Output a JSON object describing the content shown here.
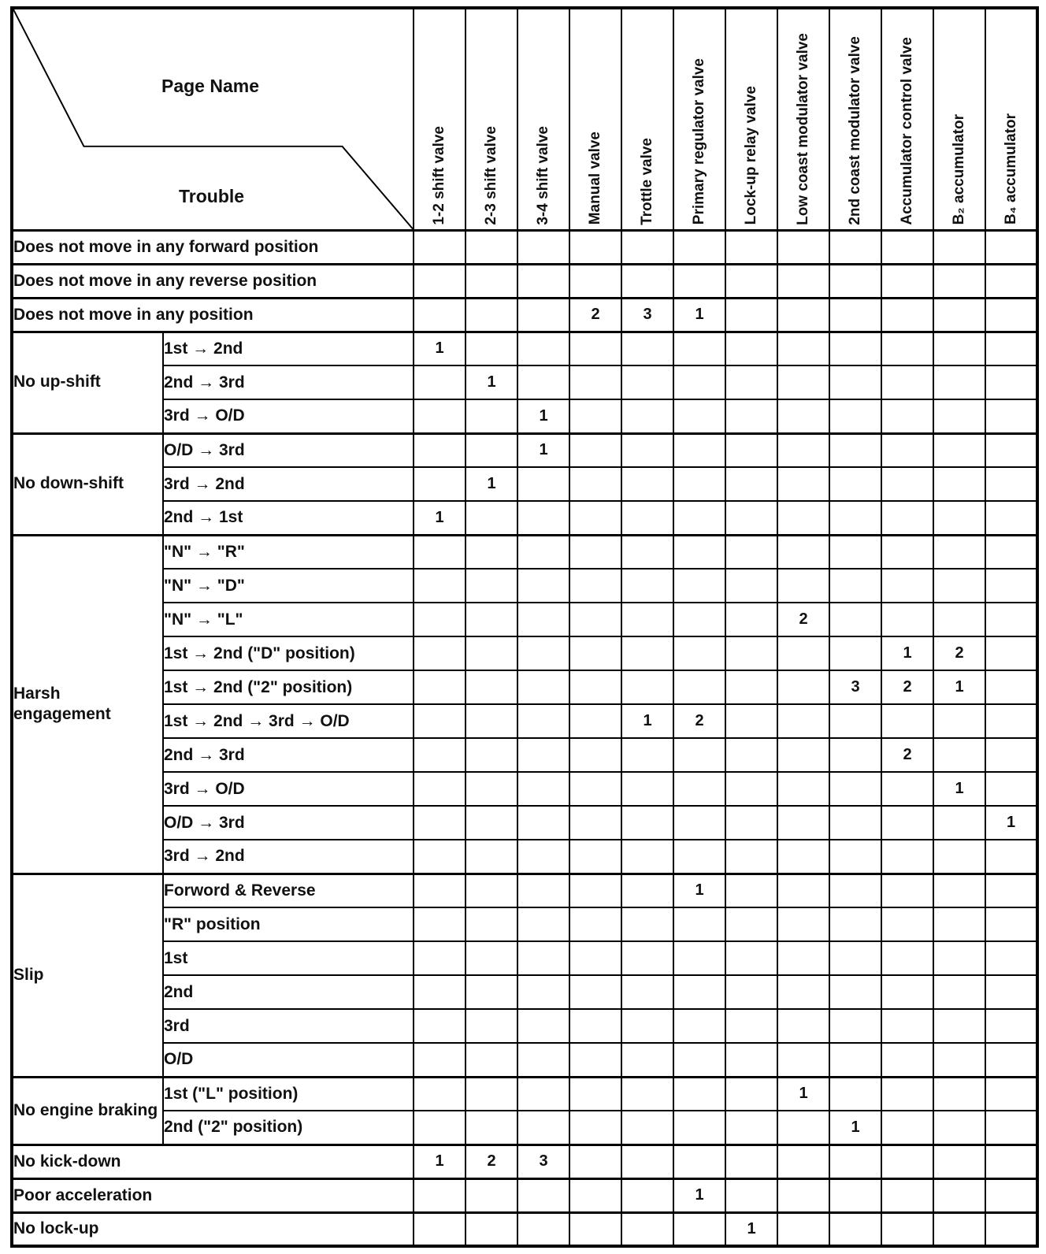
{
  "corner": {
    "page_name": "Page Name",
    "trouble": "Trouble"
  },
  "columns": [
    "1-2 shift valve",
    "2-3 shift valve",
    "3-4 shift valve",
    "Manual valve",
    "Trottle valve",
    "Primary regulator valve",
    "Lock-up relay valve",
    "Low coast modulator valve",
    "2nd coast modulator valve",
    "Accumulator control valve",
    "B₂ accumulator",
    "B₄ accumulator"
  ],
  "rows": [
    {
      "type": "full",
      "label": "Does not move in any forward position",
      "values": [
        "",
        "",
        "",
        "",
        "",
        "",
        "",
        "",
        "",
        "",
        "",
        ""
      ]
    },
    {
      "type": "full",
      "label": "Does not move in any reverse position",
      "values": [
        "",
        "",
        "",
        "",
        "",
        "",
        "",
        "",
        "",
        "",
        "",
        ""
      ]
    },
    {
      "type": "full",
      "label": "Does not move in any position",
      "values": [
        "",
        "",
        "",
        "2",
        "3",
        "1",
        "",
        "",
        "",
        "",
        "",
        ""
      ]
    },
    {
      "type": "group-start",
      "group": "No up-shift",
      "group_span": 3,
      "label": "1st → 2nd",
      "values": [
        "1",
        "",
        "",
        "",
        "",
        "",
        "",
        "",
        "",
        "",
        "",
        ""
      ]
    },
    {
      "type": "sub",
      "label": "2nd → 3rd",
      "values": [
        "",
        "1",
        "",
        "",
        "",
        "",
        "",
        "",
        "",
        "",
        "",
        ""
      ]
    },
    {
      "type": "sub",
      "label": "3rd → O/D",
      "values": [
        "",
        "",
        "1",
        "",
        "",
        "",
        "",
        "",
        "",
        "",
        "",
        ""
      ]
    },
    {
      "type": "group-start",
      "group": "No down-shift",
      "group_span": 3,
      "label": "O/D → 3rd",
      "values": [
        "",
        "",
        "1",
        "",
        "",
        "",
        "",
        "",
        "",
        "",
        "",
        ""
      ]
    },
    {
      "type": "sub",
      "label": "3rd → 2nd",
      "values": [
        "",
        "1",
        "",
        "",
        "",
        "",
        "",
        "",
        "",
        "",
        "",
        ""
      ]
    },
    {
      "type": "sub",
      "label": "2nd → 1st",
      "values": [
        "1",
        "",
        "",
        "",
        "",
        "",
        "",
        "",
        "",
        "",
        "",
        ""
      ]
    },
    {
      "type": "group-start",
      "group": "Harsh engagement",
      "group_span": 10,
      "label": "\"N\" → \"R\"",
      "values": [
        "",
        "",
        "",
        "",
        "",
        "",
        "",
        "",
        "",
        "",
        "",
        ""
      ]
    },
    {
      "type": "sub",
      "label": "\"N\" → \"D\"",
      "values": [
        "",
        "",
        "",
        "",
        "",
        "",
        "",
        "",
        "",
        "",
        "",
        ""
      ]
    },
    {
      "type": "sub",
      "label": "\"N\" → \"L\"",
      "values": [
        "",
        "",
        "",
        "",
        "",
        "",
        "",
        "2",
        "",
        "",
        "",
        ""
      ]
    },
    {
      "type": "sub",
      "label": "1st → 2nd (\"D\" position)",
      "values": [
        "",
        "",
        "",
        "",
        "",
        "",
        "",
        "",
        "",
        "1",
        "2",
        ""
      ]
    },
    {
      "type": "sub",
      "label": "1st → 2nd (\"2\" position)",
      "values": [
        "",
        "",
        "",
        "",
        "",
        "",
        "",
        "",
        "3",
        "2",
        "1",
        ""
      ]
    },
    {
      "type": "sub",
      "label": "1st → 2nd → 3rd → O/D",
      "values": [
        "",
        "",
        "",
        "",
        "1",
        "2",
        "",
        "",
        "",
        "",
        "",
        ""
      ]
    },
    {
      "type": "sub",
      "label": "2nd → 3rd",
      "values": [
        "",
        "",
        "",
        "",
        "",
        "",
        "",
        "",
        "",
        "2",
        "",
        ""
      ]
    },
    {
      "type": "sub",
      "label": "3rd → O/D",
      "values": [
        "",
        "",
        "",
        "",
        "",
        "",
        "",
        "",
        "",
        "",
        "1",
        ""
      ]
    },
    {
      "type": "sub",
      "label": "O/D → 3rd",
      "values": [
        "",
        "",
        "",
        "",
        "",
        "",
        "",
        "",
        "",
        "",
        "",
        "1"
      ]
    },
    {
      "type": "sub",
      "label": "3rd → 2nd",
      "values": [
        "",
        "",
        "",
        "",
        "",
        "",
        "",
        "",
        "",
        "",
        "",
        ""
      ]
    },
    {
      "type": "group-start",
      "group": "Slip",
      "group_span": 6,
      "label": "Forword & Reverse",
      "values": [
        "",
        "",
        "",
        "",
        "",
        "1",
        "",
        "",
        "",
        "",
        "",
        ""
      ]
    },
    {
      "type": "sub",
      "label": "\"R\" position",
      "values": [
        "",
        "",
        "",
        "",
        "",
        "",
        "",
        "",
        "",
        "",
        "",
        ""
      ]
    },
    {
      "type": "sub",
      "label": "1st",
      "values": [
        "",
        "",
        "",
        "",
        "",
        "",
        "",
        "",
        "",
        "",
        "",
        ""
      ]
    },
    {
      "type": "sub",
      "label": "2nd",
      "values": [
        "",
        "",
        "",
        "",
        "",
        "",
        "",
        "",
        "",
        "",
        "",
        ""
      ]
    },
    {
      "type": "sub",
      "label": "3rd",
      "values": [
        "",
        "",
        "",
        "",
        "",
        "",
        "",
        "",
        "",
        "",
        "",
        ""
      ]
    },
    {
      "type": "sub",
      "label": "O/D",
      "values": [
        "",
        "",
        "",
        "",
        "",
        "",
        "",
        "",
        "",
        "",
        "",
        ""
      ]
    },
    {
      "type": "group-start",
      "group": "No engine braking",
      "group_span": 2,
      "label": "1st (\"L\" position)",
      "values": [
        "",
        "",
        "",
        "",
        "",
        "",
        "",
        "1",
        "",
        "",
        "",
        ""
      ]
    },
    {
      "type": "sub",
      "label": "2nd (\"2\" position)",
      "values": [
        "",
        "",
        "",
        "",
        "",
        "",
        "",
        "",
        "1",
        "",
        "",
        ""
      ]
    },
    {
      "type": "full",
      "label": "No kick-down",
      "values": [
        "1",
        "2",
        "3",
        "",
        "",
        "",
        "",
        "",
        "",
        "",
        "",
        ""
      ]
    },
    {
      "type": "full",
      "label": "Poor acceleration",
      "values": [
        "",
        "",
        "",
        "",
        "",
        "1",
        "",
        "",
        "",
        "",
        "",
        ""
      ]
    },
    {
      "type": "full",
      "label": "No lock-up",
      "values": [
        "",
        "",
        "",
        "",
        "",
        "",
        "1",
        "",
        "",
        "",
        "",
        ""
      ]
    }
  ]
}
